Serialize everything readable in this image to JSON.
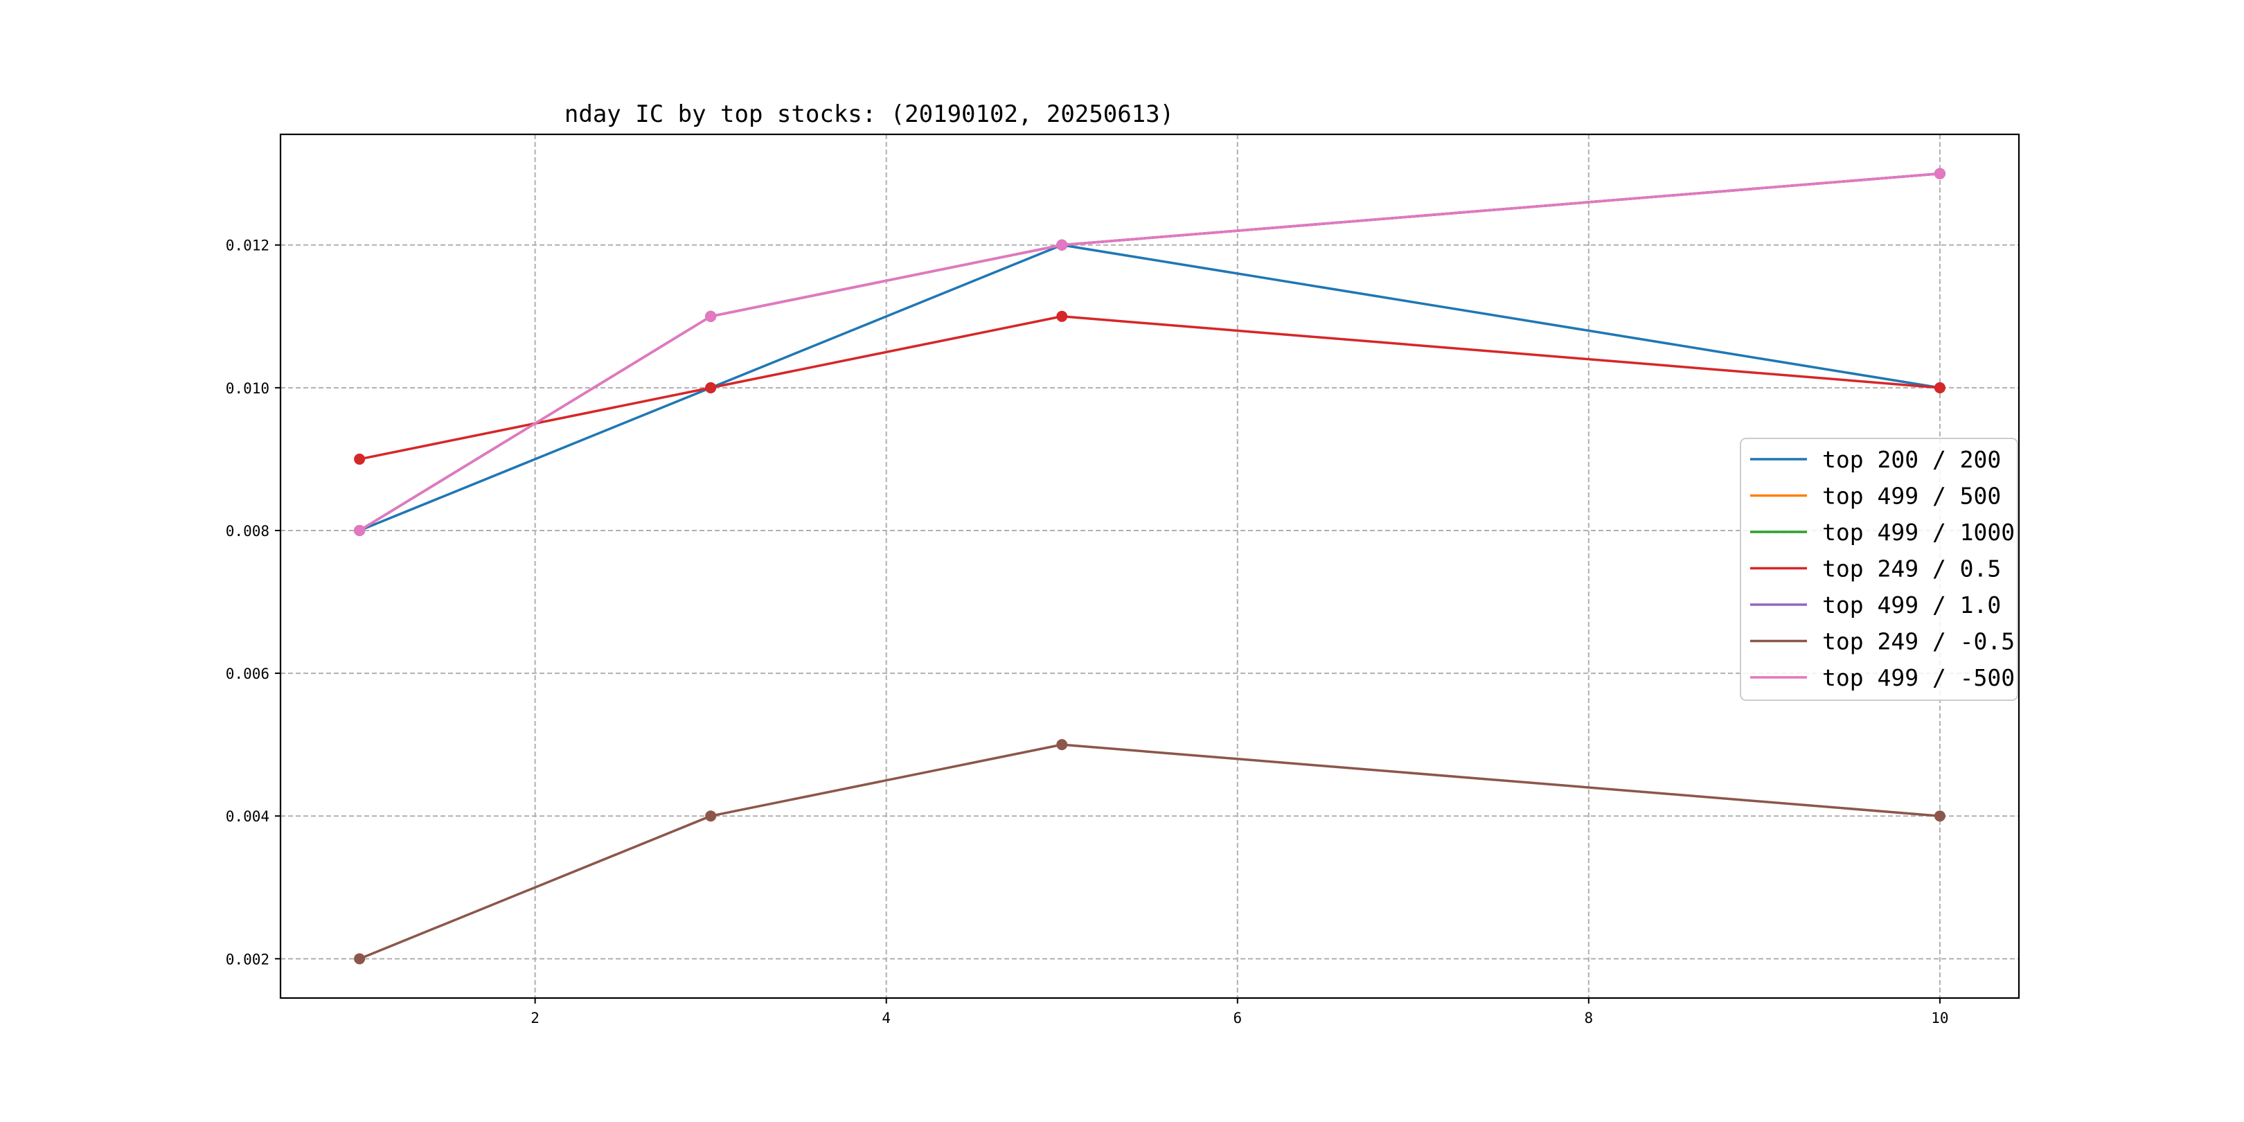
{
  "chart_data": {
    "type": "line",
    "title": "nday IC by top stocks: (20190102, 20250613)",
    "xlabel": "",
    "ylabel": "",
    "x": [
      1,
      3,
      5,
      10
    ],
    "xlim": [
      0.55,
      10.45
    ],
    "ylim": [
      0.00145,
      0.01355
    ],
    "xticks": [
      2,
      4,
      6,
      8,
      10
    ],
    "yticks": [
      0.002,
      0.004,
      0.006,
      0.008,
      0.01,
      0.012
    ],
    "xtick_labels": [
      "2",
      "4",
      "6",
      "8",
      "10"
    ],
    "ytick_labels": [
      "0.002",
      "0.004",
      "0.006",
      "0.008",
      "0.010",
      "0.012"
    ],
    "grid": true,
    "legend_position": "center-right",
    "series": [
      {
        "name": "top 200 / 200",
        "color": "#1f77b4",
        "values": [
          0.008,
          0.01,
          0.012,
          0.01
        ]
      },
      {
        "name": "top 499 / 500",
        "color": "#ff7f0e",
        "values": [
          0.008,
          0.011,
          0.012,
          0.013
        ]
      },
      {
        "name": "top 499 / 1000",
        "color": "#2ca02c",
        "values": [
          0.008,
          0.011,
          0.012,
          0.013
        ]
      },
      {
        "name": "top 249 / 0.5",
        "color": "#d62728",
        "values": [
          0.009,
          0.01,
          0.011,
          0.01
        ]
      },
      {
        "name": "top 499 / 1.0",
        "color": "#9467bd",
        "values": [
          0.008,
          0.011,
          0.012,
          0.013
        ]
      },
      {
        "name": "top 249 / -0.5",
        "color": "#8c564b",
        "values": [
          0.002,
          0.004,
          0.005,
          0.004
        ]
      },
      {
        "name": "top 499 / -500",
        "color": "#e377c2",
        "values": [
          0.008,
          0.011,
          0.012,
          0.013
        ]
      }
    ]
  }
}
